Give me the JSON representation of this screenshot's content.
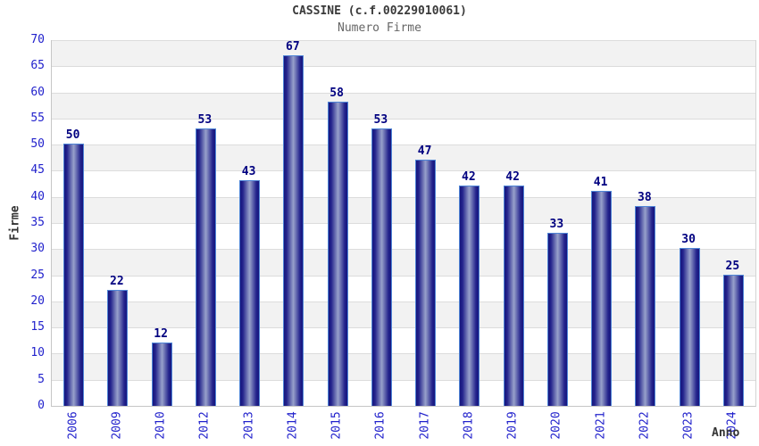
{
  "chart_data": {
    "type": "bar",
    "title": "CASSINE (c.f.00229010061)",
    "subtitle": "Numero Firme",
    "xlabel": "Anno",
    "ylabel": "Firme",
    "categories": [
      "2006",
      "2009",
      "2010",
      "2012",
      "2013",
      "2014",
      "2015",
      "2016",
      "2017",
      "2018",
      "2019",
      "2020",
      "2021",
      "2022",
      "2023",
      "2024"
    ],
    "values": [
      50,
      22,
      12,
      53,
      43,
      67,
      58,
      53,
      47,
      42,
      42,
      33,
      41,
      38,
      30,
      25
    ],
    "ylim": [
      0,
      70
    ],
    "ytick_step": 5,
    "yticks": [
      0,
      5,
      10,
      15,
      20,
      25,
      30,
      35,
      40,
      45,
      50,
      55,
      60,
      65,
      70
    ],
    "grid": true,
    "legend": "none",
    "bar_value_labels_shown": true,
    "colors": {
      "bar_edge": "#16167e",
      "bar_inner": "#23238c",
      "bar_center": "#98a1cb",
      "bar_border": "#4f85d6",
      "value_label": "#000080",
      "tick_label": "#2222cc",
      "axis_label": "#333333",
      "title": "#3a3a3a",
      "subtitle": "#666666",
      "band_gray": "#f2f2f2",
      "band_white": "#ffffff",
      "gridline": "#dcdcdc"
    }
  }
}
